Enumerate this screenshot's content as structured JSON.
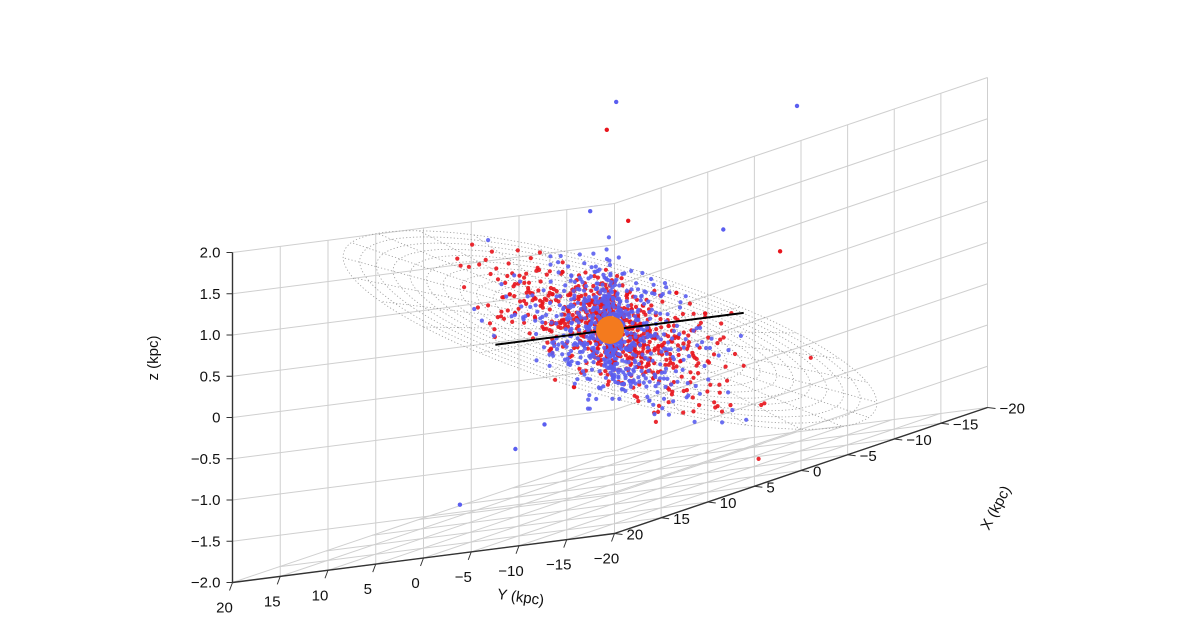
{
  "chart_data": {
    "type": "scatter",
    "projection": "3d",
    "title": "",
    "grid": true,
    "legend": "none",
    "xlabel": "X (kpc)",
    "ylabel": "Y (kpc)",
    "zlabel": "z (kpc)",
    "xlim": [
      -20,
      20
    ],
    "ylim": [
      -20,
      20
    ],
    "zlim": [
      -2.0,
      2.0
    ],
    "x_ticks": [
      "−20",
      "−15",
      "−10",
      "−5",
      "0",
      "5",
      "10",
      "15",
      "20"
    ],
    "y_ticks": [
      "20",
      "15",
      "10",
      "5",
      "0",
      "−5",
      "−10",
      "−15",
      "−20"
    ],
    "z_ticks": [
      "2.0",
      "1.5",
      "1.0",
      "0.5",
      "0",
      "−0.5",
      "−1.0",
      "−1.5",
      "−2.0"
    ],
    "colors": {
      "red_series": "#e8141c",
      "blue_series": "#5a5ef0",
      "center_marker": "#f47a1e",
      "line": "#000000",
      "mesh": "#9a9a9a",
      "grid": "#cfcfcf"
    },
    "center_marker": {
      "x": 0,
      "y": 0,
      "z": 0
    },
    "line": {
      "from": {
        "x": 0,
        "y": 12,
        "z": 0
      },
      "to": {
        "x": 0,
        "y": -14,
        "z": 0
      }
    },
    "series": [
      {
        "color": "#e8141c",
        "count": 750,
        "points": [
          {
            "x": 2,
            "y": 8,
            "z": 0.4
          },
          {
            "x": -1,
            "y": 7,
            "z": 0.5
          },
          {
            "x": 0.5,
            "y": 10,
            "z": 0.6
          },
          {
            "x": -2,
            "y": -5,
            "z": 0.3
          },
          {
            "x": 3,
            "y": -8,
            "z": -0.2
          },
          {
            "x": 6,
            "y": -12,
            "z": 0.1
          },
          {
            "x": -8,
            "y": -10,
            "z": 0.5
          },
          {
            "x": 10,
            "y": -6,
            "z": -0.4
          },
          {
            "x": 12,
            "y": -14,
            "z": 0.2
          },
          {
            "x": -14,
            "y": 14,
            "z": 2.1
          },
          {
            "x": 1,
            "y": 4,
            "z": 0.8
          },
          {
            "x": -4,
            "y": 2,
            "z": 1.2
          }
        ]
      },
      {
        "color": "#5a5ef0",
        "count": 650,
        "points": [
          {
            "x": 0,
            "y": 2,
            "z": 0.1
          },
          {
            "x": 1,
            "y": -1,
            "z": -0.3
          },
          {
            "x": -1,
            "y": 0,
            "z": 0.2
          },
          {
            "x": 2,
            "y": -4,
            "z": -0.6
          },
          {
            "x": 4,
            "y": 6,
            "z": -1.2
          },
          {
            "x": -3,
            "y": 5,
            "z": 1.4
          },
          {
            "x": 5,
            "y": -9,
            "z": -0.8
          },
          {
            "x": -15,
            "y": 14,
            "z": 2.4
          },
          {
            "x": 12,
            "y": 4,
            "z": -1.6
          },
          {
            "x": -18,
            "y": -2,
            "z": 2.0
          },
          {
            "x": 6,
            "y": 1,
            "z": -0.9
          },
          {
            "x": -6,
            "y": -6,
            "z": 0.9
          }
        ]
      }
    ]
  }
}
